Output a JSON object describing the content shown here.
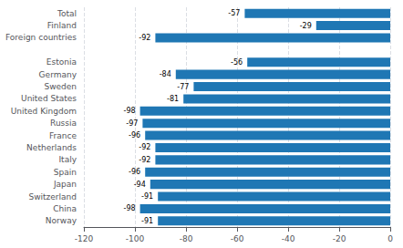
{
  "chart_data": {
    "type": "bar",
    "orientation": "horizontal",
    "categories": [
      "Total",
      "Finland",
      "Foreign countries",
      null,
      "Estonia",
      "Germany",
      "Sweden",
      "United States",
      "United Kingdom",
      "Russia",
      "France",
      "Netherlands",
      "Italy",
      "Spain",
      "Japan",
      "Switzerland",
      "China",
      "Norway"
    ],
    "values": [
      -57,
      -29,
      -92,
      null,
      -56,
      -84,
      -77,
      -81,
      -98,
      -97,
      -96,
      -92,
      -92,
      -96,
      -94,
      -91,
      -98,
      -91
    ],
    "color": "#1f77b4",
    "xlim": [
      -120,
      0
    ],
    "xticks": [
      -120,
      -100,
      -80,
      -60,
      -40,
      -20,
      0
    ],
    "grid": true,
    "data_labels": true
  }
}
